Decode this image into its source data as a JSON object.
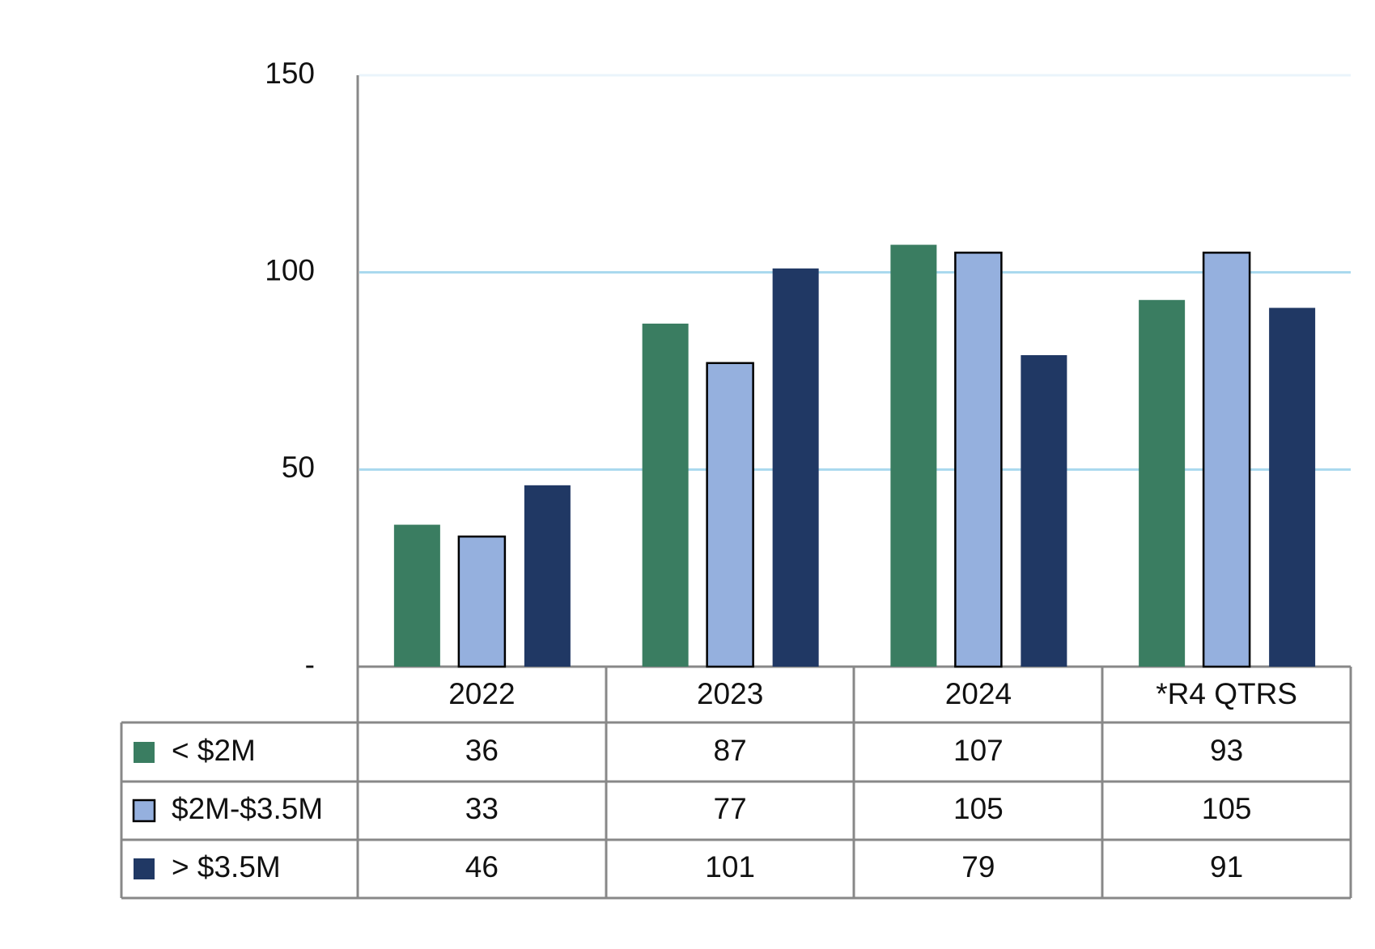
{
  "chart_data": {
    "type": "bar",
    "categories": [
      "2022",
      "2023",
      "2024",
      "*R4 QTRS"
    ],
    "series": [
      {
        "name": "< $2M",
        "color": "#3a7d61",
        "values": [
          36,
          87,
          107,
          93
        ]
      },
      {
        "name": "$2M-$3.5M",
        "color": "#95b0de",
        "values": [
          33,
          77,
          105,
          105
        ]
      },
      {
        "name": "> $3.5M",
        "color": "#203864",
        "values": [
          46,
          101,
          79,
          91
        ]
      }
    ],
    "ylim": [
      0,
      150
    ],
    "yticks": [
      {
        "value": 0,
        "label": "-"
      },
      50,
      100,
      150
    ],
    "grid": true
  }
}
